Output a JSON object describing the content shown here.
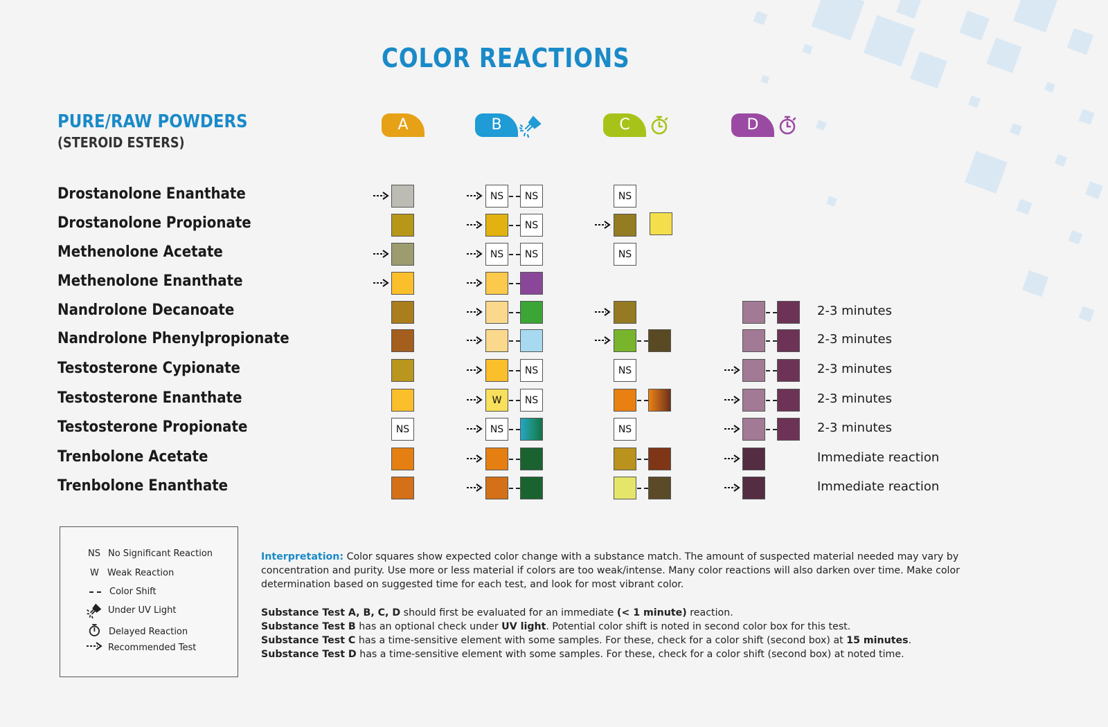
{
  "title": "COLOR REACTIONS",
  "section": {
    "title": "PURE/RAW POWDERS",
    "subtitle": "(STEROID ESTERS)"
  },
  "columns": [
    {
      "label": "A",
      "color": "#e6a117",
      "icon": ""
    },
    {
      "label": "B",
      "color": "#1f9bd6",
      "icon": "uv-flashlight-icon"
    },
    {
      "label": "C",
      "color": "#a7c31a",
      "icon": "stopwatch-icon"
    },
    {
      "label": "D",
      "color": "#9b4aa3",
      "icon": "stopwatch-icon"
    }
  ],
  "rows": [
    {
      "name": "Drostanolone Enanthate",
      "A": {
        "arrow": true,
        "boxes": [
          "#bdbcb4"
        ]
      },
      "B": {
        "arrow": true,
        "boxes": [
          "NS",
          "NS"
        ]
      },
      "C": {
        "arrow": false,
        "boxes": [
          "NS"
        ]
      },
      "D": {
        "arrow": false,
        "boxes": []
      },
      "note": ""
    },
    {
      "name": "Drostanolone Propionate",
      "A": {
        "arrow": false,
        "boxes": [
          "#b79718"
        ]
      },
      "B": {
        "arrow": true,
        "boxes": [
          "#e2b310",
          "NS"
        ]
      },
      "C": {
        "arrow": true,
        "boxes": [
          "#937c22"
        ],
        "extra": "#f5de4c"
      },
      "D": {
        "arrow": false,
        "boxes": []
      },
      "note": ""
    },
    {
      "name": "Methenolone Acetate",
      "A": {
        "arrow": true,
        "boxes": [
          "#9c9c70"
        ]
      },
      "B": {
        "arrow": true,
        "boxes": [
          "NS",
          "NS"
        ]
      },
      "C": {
        "arrow": false,
        "boxes": [
          "NS"
        ]
      },
      "D": {
        "arrow": false,
        "boxes": []
      },
      "note": ""
    },
    {
      "name": "Methenolone Enanthate",
      "A": {
        "arrow": true,
        "boxes": [
          "#fbbf2b"
        ]
      },
      "B": {
        "arrow": true,
        "boxes": [
          "#fbc94b",
          "#8a479a"
        ]
      },
      "C": {
        "arrow": false,
        "boxes": []
      },
      "D": {
        "arrow": false,
        "boxes": []
      },
      "note": ""
    },
    {
      "name": "Nandrolone Decanoate",
      "A": {
        "arrow": false,
        "boxes": [
          "#aa7d1d"
        ]
      },
      "B": {
        "arrow": true,
        "boxes": [
          "#fbd98c",
          "#3ba535"
        ]
      },
      "C": {
        "arrow": true,
        "boxes": [
          "#957a23"
        ]
      },
      "D": {
        "arrow": false,
        "boxes": [
          "#a27a95",
          "#6d3356"
        ]
      },
      "note": "2-3 minutes"
    },
    {
      "name": "Nandrolone Phenylpropionate",
      "A": {
        "arrow": false,
        "boxes": [
          "#a45e1d"
        ]
      },
      "B": {
        "arrow": true,
        "boxes": [
          "#fbd98c",
          "#a7daf0"
        ]
      },
      "C": {
        "arrow": true,
        "boxes": [
          "#78b52c",
          "#5a4a24"
        ]
      },
      "D": {
        "arrow": false,
        "boxes": [
          "#a27a95",
          "#6d3356"
        ]
      },
      "note": "2-3 minutes"
    },
    {
      "name": "Testosterone Cypionate",
      "A": {
        "arrow": false,
        "boxes": [
          "#b9961d"
        ]
      },
      "B": {
        "arrow": true,
        "boxes": [
          "#fbbf2b",
          "NS"
        ]
      },
      "C": {
        "arrow": false,
        "boxes": [
          "NS"
        ]
      },
      "D": {
        "arrow": true,
        "boxes": [
          "#a27a95",
          "#6d3356"
        ]
      },
      "note": "2-3 minutes"
    },
    {
      "name": "Testosterone Enanthate",
      "A": {
        "arrow": false,
        "boxes": [
          "#fbbf2b"
        ]
      },
      "B": {
        "arrow": true,
        "boxes": [
          "W",
          "NS"
        ]
      },
      "C": {
        "arrow": false,
        "boxes": [
          "#e98012",
          "grad-orange"
        ]
      },
      "D": {
        "arrow": true,
        "boxes": [
          "#a27a95",
          "#6d3356"
        ]
      },
      "note": "2-3 minutes"
    },
    {
      "name": "Testosterone Propionate",
      "A": {
        "arrow": false,
        "boxes": [
          "NS"
        ]
      },
      "B": {
        "arrow": true,
        "boxes": [
          "NS",
          "grad-teal"
        ]
      },
      "C": {
        "arrow": false,
        "boxes": [
          "NS"
        ]
      },
      "D": {
        "arrow": true,
        "boxes": [
          "#a27a95",
          "#6d3356"
        ]
      },
      "note": "2-3 minutes"
    },
    {
      "name": "Trenbolone Acetate",
      "A": {
        "arrow": false,
        "boxes": [
          "#e57f12"
        ]
      },
      "B": {
        "arrow": true,
        "boxes": [
          "#e57f12",
          "#1a6330"
        ]
      },
      "C": {
        "arrow": false,
        "boxes": [
          "#b9931d",
          "#7e3617"
        ]
      },
      "D": {
        "arrow": true,
        "boxes": [
          "#542d43"
        ]
      },
      "note": "Immediate reaction"
    },
    {
      "name": "Trenbolone Enanthate",
      "A": {
        "arrow": false,
        "boxes": [
          "#d37018"
        ]
      },
      "B": {
        "arrow": true,
        "boxes": [
          "#d37018",
          "#1a6330"
        ]
      },
      "C": {
        "arrow": false,
        "boxes": [
          "#e5e56a",
          "#5a4a27"
        ]
      },
      "D": {
        "arrow": true,
        "boxes": [
          "#542d43"
        ]
      },
      "note": "Immediate reaction"
    }
  ],
  "legend": [
    {
      "symbol": "NS",
      "label": "No Significant Reaction"
    },
    {
      "symbol": "W",
      "label": "Weak Reaction"
    },
    {
      "symbol": "dash",
      "label": "Color Shift"
    },
    {
      "symbol": "uv",
      "label": "Under UV Light"
    },
    {
      "symbol": "timer",
      "label": "Delayed Reaction"
    },
    {
      "symbol": "arrow",
      "label": "Recommended Test"
    }
  ],
  "interpretation": {
    "label": "Interpretation:",
    "text": "Color squares show expected color change with a substance match. The amount of suspected material needed may vary by concentration and purity. Use more or less material if colors are too weak/intense. Many color reactions will also darken over time. Make color determination based on suggested time for each test, and look for most vibrant color."
  },
  "notes": [
    {
      "bold": "Substance Test A, B, C, D",
      "text": " should first be evaluated for an immediate ",
      "bold2": "(< 1 minute)",
      "text2": " reaction."
    },
    {
      "bold": "Substance Test B",
      "text": " has an optional check under ",
      "bold2": "UV light",
      "text2": ". Potential color shift is noted in second color box for this test."
    },
    {
      "bold": "Substance Test C",
      "text": " has a time-sensitive element with some samples. For these, check for a color shift (second box) at ",
      "bold2": "15 minutes",
      "text2": "."
    },
    {
      "bold": "Substance Test D",
      "text": " has a time-sensitive element with some samples. For these, check for a color shift (second box) at noted time.",
      "bold2": "",
      "text2": ""
    }
  ]
}
